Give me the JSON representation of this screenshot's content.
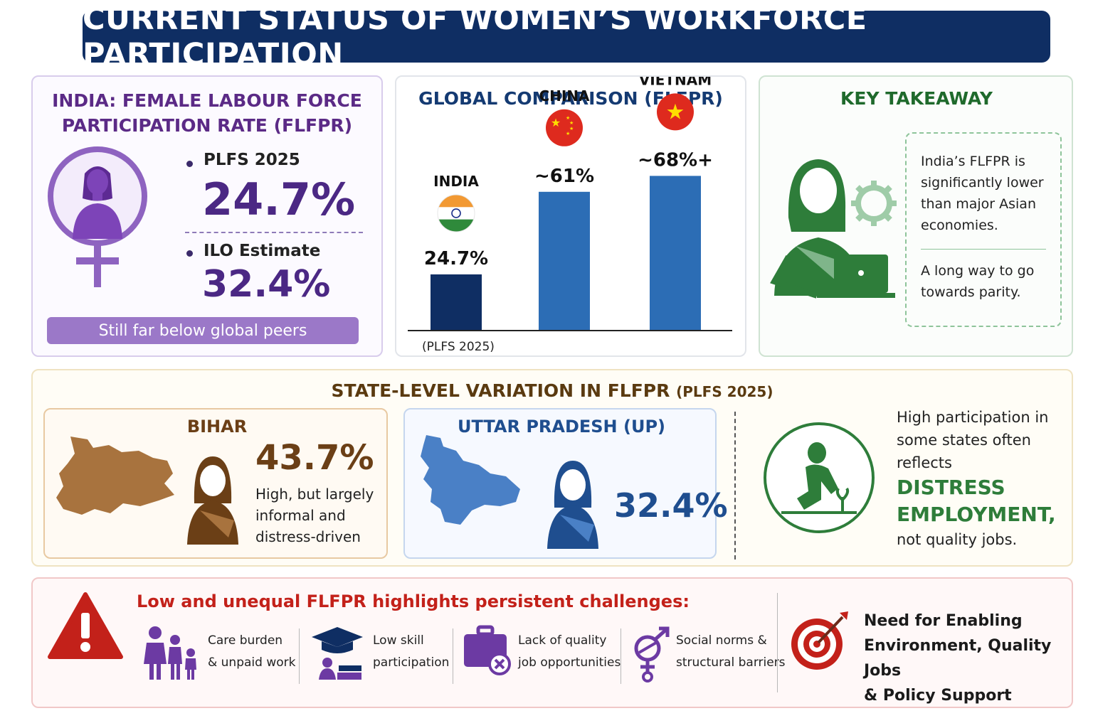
{
  "title": "CURRENT STATUS OF WOMEN’S WORKFORCE PARTICIPATION",
  "india_panel": {
    "heading_line1": "INDIA: FEMALE LABOUR FORCE",
    "heading_line2": "PARTICIPATION RATE (FLFPR)",
    "plfs_label": "PLFS 2025",
    "plfs_value": "24.7%",
    "ilo_label": "ILO Estimate",
    "ilo_value": "32.4%",
    "banner": "Still far below global peers",
    "icon": "female-symbol-icon"
  },
  "global_panel": {
    "heading": "GLOBAL COMPARISON (FLFPR)",
    "footnote": "(PLFS 2025)"
  },
  "chart_data": {
    "type": "bar",
    "title": "GLOBAL COMPARISON (FLFPR)",
    "categories": [
      "INDIA",
      "CHINA",
      "VIETNAM"
    ],
    "values": [
      24.7,
      61,
      68
    ],
    "value_labels": [
      "24.7%",
      "~61%",
      "~68%+"
    ],
    "colors": [
      "#0f2e63",
      "#2c6db5",
      "#2c6db5"
    ],
    "flags": [
      "india-flag-icon",
      "china-flag-icon",
      "vietnam-flag-icon"
    ],
    "ylim": [
      0,
      100
    ],
    "grid": false
  },
  "key_panel": {
    "heading": "KEY TAKEAWAY",
    "text1_line1": "India’s FLFPR is",
    "text1_line2": "significantly lower",
    "text1_line3": "than major Asian",
    "text1_line4": "economies.",
    "text2_line1": "A long way to go",
    "text2_line2": "towards parity.",
    "icons": [
      "woman-laptop-icon",
      "gear-icon"
    ]
  },
  "state_panel": {
    "heading": "STATE-LEVEL VARIATION IN FLFPR",
    "heading_sub": "(PLFS 2025)",
    "bihar": {
      "name": "BIHAR",
      "value": "43.7%",
      "desc_line1": "High, but largely",
      "desc_line2": "informal and",
      "desc_line3": "distress-driven",
      "color": "#a8733e"
    },
    "up": {
      "name": "UTTAR PRADESH (UP)",
      "value": "32.4%",
      "color": "#4a80c6"
    },
    "note_line1": "High participation in",
    "note_line2": "some states often",
    "note_line3": "reflects",
    "emph_line1": "DISTRESS",
    "emph_line2": "EMPLOYMENT,",
    "note_line4": "not quality jobs."
  },
  "challenges_panel": {
    "heading": "Low and unequal FLFPR highlights persistent challenges:",
    "items": [
      {
        "line1": "Care burden",
        "line2": "& unpaid work",
        "icon": "family-icon"
      },
      {
        "line1": "Low skill",
        "line2": "participation",
        "icon": "graduation-cap-icon"
      },
      {
        "line1": "Lack of quality",
        "line2": "job opportunities",
        "icon": "briefcase-icon"
      },
      {
        "line1": "Social norms &",
        "line2": "structural barriers",
        "icon": "gender-symbol-icon"
      }
    ],
    "need_line1": "Need for Enabling",
    "need_line2": "Environment, Quality Jobs",
    "need_line3": "& Policy Support"
  }
}
